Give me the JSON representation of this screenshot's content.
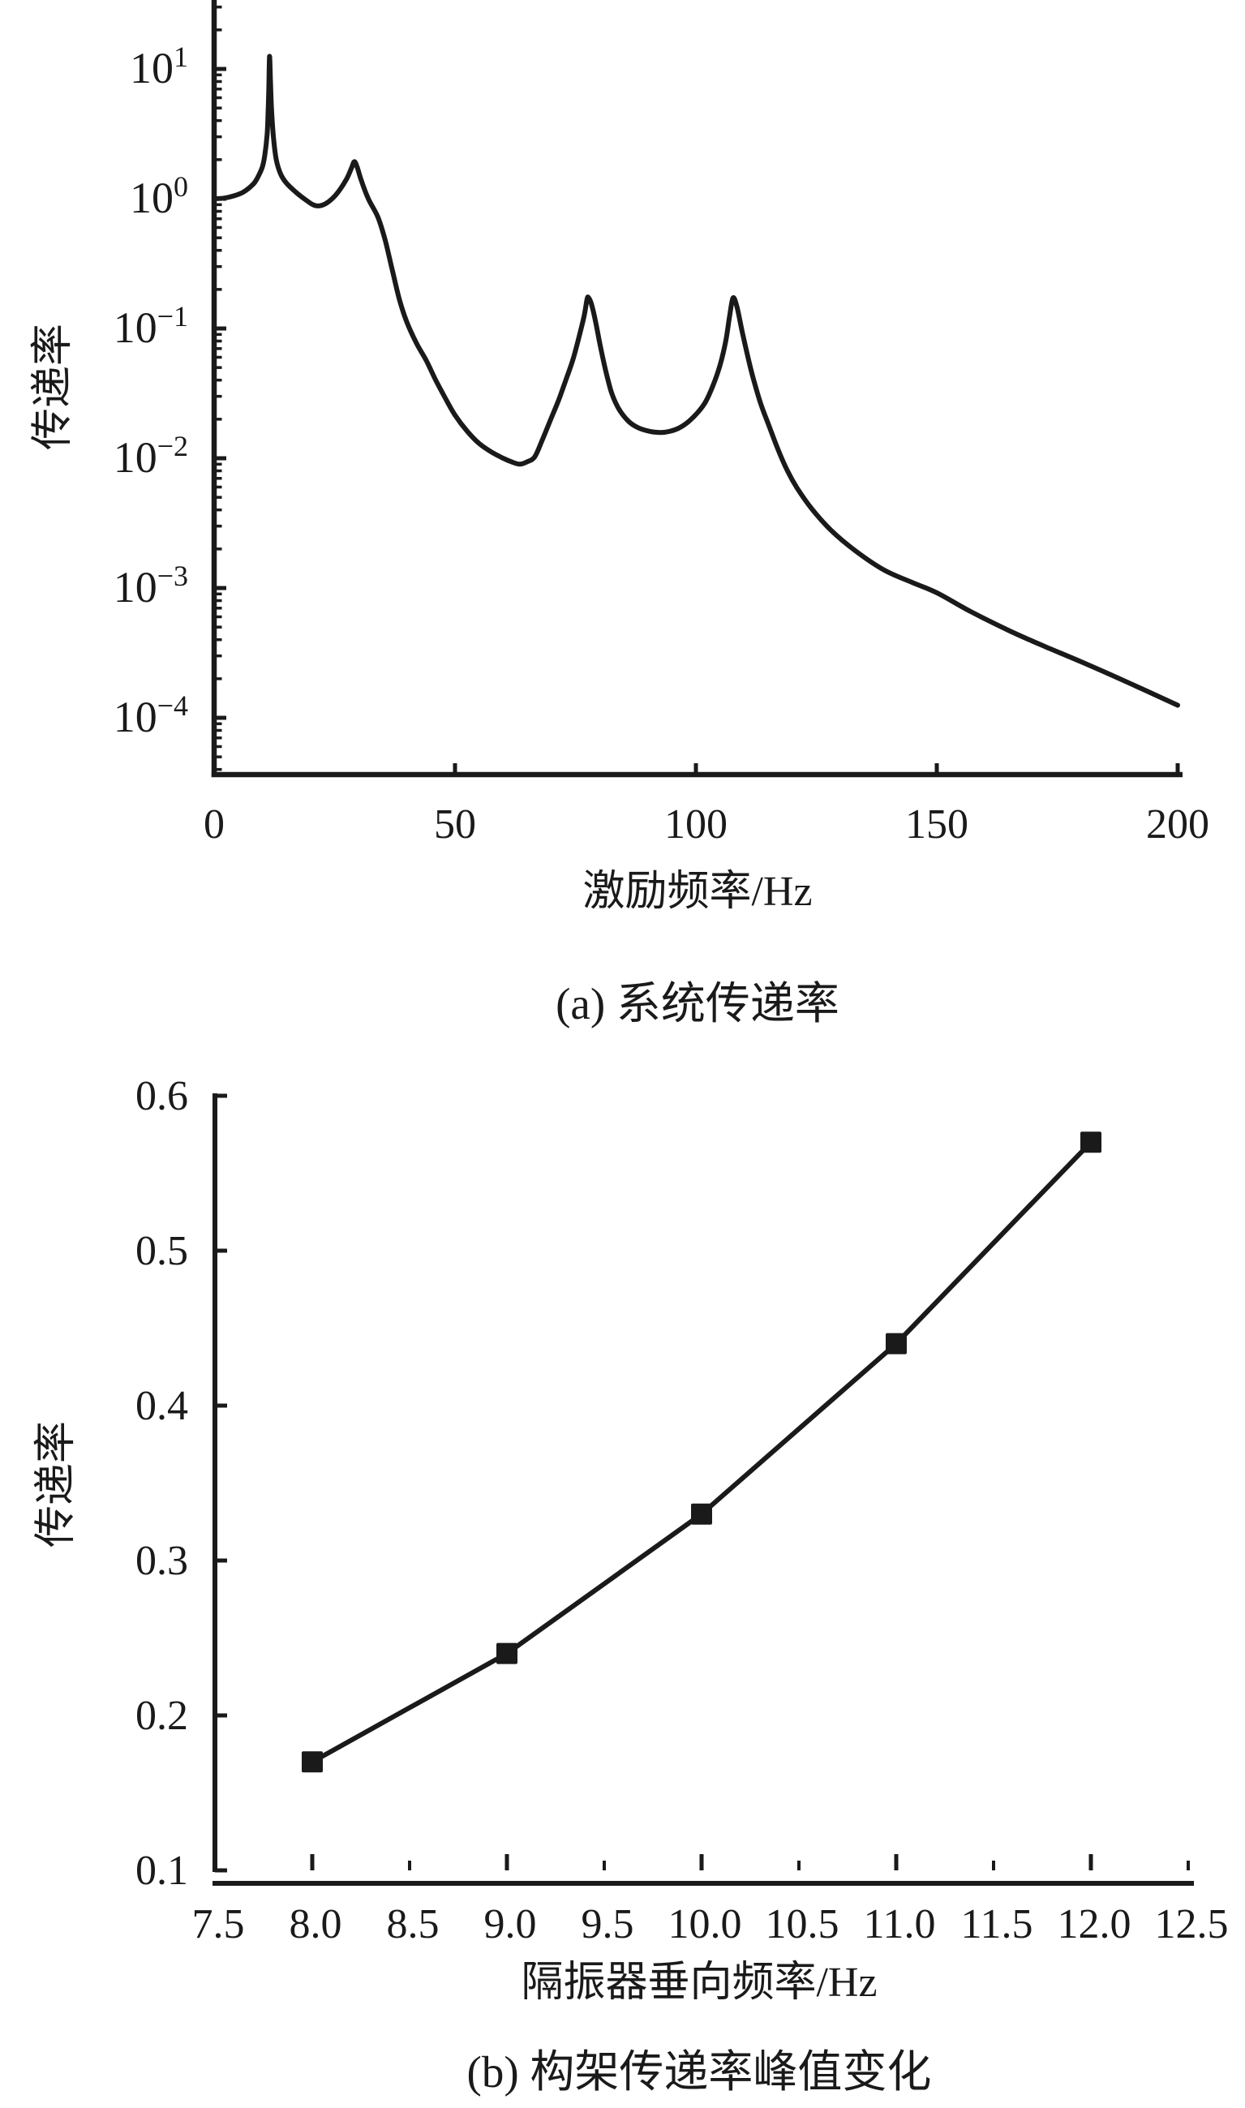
{
  "figure": {
    "background": "#ffffff",
    "ink": "#1a1a1a",
    "description": "Two stacked black-and-white line charts of vibration transmissibility"
  },
  "chart_data": [
    {
      "id": "a",
      "type": "line",
      "caption": "(a) 系统传递率",
      "xlabel": "激励频率/Hz",
      "ylabel": "传递率",
      "x_axis": {
        "min": 0,
        "max": 200,
        "ticks": [
          0,
          50,
          100,
          150,
          200
        ],
        "tick_labels": [
          "0",
          "50",
          "100",
          "150",
          "200"
        ]
      },
      "y_axis": {
        "scale": "log",
        "tick_exponents": [
          1,
          0,
          -1,
          -2,
          -3,
          -4
        ],
        "min": 3.85e-05,
        "max": 34,
        "minor_ticks": "log-decades"
      },
      "grid": false,
      "legend": false,
      "features": {
        "resonance_peaks_hz": [
          11.5,
          29.1,
          77.7,
          107.7
        ],
        "resonance_peak_values": [
          12.5,
          1.93,
          0.173,
          0.172
        ],
        "antiresonance_hz": [
          21.7,
          63.5,
          92.8
        ],
        "antiresonance_values": [
          0.88,
          0.009,
          0.0158
        ],
        "value_at_0hz": 1.0,
        "value_at_200hz": 0.000125
      },
      "series": {
        "name": "系统传递率",
        "points": [
          [
            0,
            1.0
          ],
          [
            2,
            1.01
          ],
          [
            4,
            1.05
          ],
          [
            6,
            1.12
          ],
          [
            8,
            1.28
          ],
          [
            9,
            1.45
          ],
          [
            10,
            1.75
          ],
          [
            10.5,
            2.15
          ],
          [
            11.0,
            3.1
          ],
          [
            11.2,
            4.6
          ],
          [
            11.35,
            7.0
          ],
          [
            11.5,
            12.5
          ],
          [
            11.7,
            8.0
          ],
          [
            11.9,
            5.0
          ],
          [
            12.3,
            3.0
          ],
          [
            12.9,
            2.0
          ],
          [
            13.8,
            1.55
          ],
          [
            15,
            1.32
          ],
          [
            17,
            1.12
          ],
          [
            19,
            0.98
          ],
          [
            20.5,
            0.9
          ],
          [
            21.7,
            0.88
          ],
          [
            23,
            0.91
          ],
          [
            24.5,
            1.0
          ],
          [
            26,
            1.16
          ],
          [
            27.5,
            1.42
          ],
          [
            28.5,
            1.72
          ],
          [
            29.1,
            1.93
          ],
          [
            29.7,
            1.75
          ],
          [
            30.5,
            1.4
          ],
          [
            32,
            1.0
          ],
          [
            34,
            0.72
          ],
          [
            35.5,
            0.48
          ],
          [
            37,
            0.28
          ],
          [
            38.5,
            0.165
          ],
          [
            40,
            0.112
          ],
          [
            42,
            0.077
          ],
          [
            44,
            0.057
          ],
          [
            46,
            0.04
          ],
          [
            48,
            0.029
          ],
          [
            50,
            0.0215
          ],
          [
            52.5,
            0.0162
          ],
          [
            55,
            0.013
          ],
          [
            57.5,
            0.0112
          ],
          [
            60,
            0.01
          ],
          [
            62,
            0.0093
          ],
          [
            63.5,
            0.009
          ],
          [
            65,
            0.0094
          ],
          [
            66.5,
            0.0102
          ],
          [
            68,
            0.0135
          ],
          [
            70,
            0.0205
          ],
          [
            71.5,
            0.028
          ],
          [
            73,
            0.04
          ],
          [
            74.5,
            0.058
          ],
          [
            75.8,
            0.088
          ],
          [
            76.8,
            0.125
          ],
          [
            77.4,
            0.168
          ],
          [
            77.7,
            0.173
          ],
          [
            78.3,
            0.155
          ],
          [
            79.2,
            0.112
          ],
          [
            80.2,
            0.072
          ],
          [
            81.3,
            0.047
          ],
          [
            82.5,
            0.032
          ],
          [
            84,
            0.024
          ],
          [
            86,
            0.0193
          ],
          [
            88,
            0.0172
          ],
          [
            90.5,
            0.0161
          ],
          [
            92.8,
            0.0158
          ],
          [
            94.5,
            0.0161
          ],
          [
            96.5,
            0.0171
          ],
          [
            98.5,
            0.0192
          ],
          [
            100.5,
            0.0228
          ],
          [
            102,
            0.0272
          ],
          [
            103.5,
            0.036
          ],
          [
            105,
            0.052
          ],
          [
            106.2,
            0.08
          ],
          [
            107.0,
            0.125
          ],
          [
            107.7,
            0.172
          ],
          [
            108.5,
            0.148
          ],
          [
            109.6,
            0.095
          ],
          [
            110.8,
            0.06
          ],
          [
            112,
            0.04
          ],
          [
            113.5,
            0.026
          ],
          [
            115,
            0.0185
          ],
          [
            117,
            0.0118
          ],
          [
            119,
            0.008
          ],
          [
            121,
            0.0059
          ],
          [
            124,
            0.0041
          ],
          [
            128,
            0.0028
          ],
          [
            133,
            0.00195
          ],
          [
            139,
            0.00138
          ],
          [
            145,
            0.0011
          ],
          [
            150,
            0.00092
          ],
          [
            157,
            0.00066
          ],
          [
            165,
            0.00047
          ],
          [
            172,
            0.00036
          ],
          [
            180,
            0.00027
          ],
          [
            190,
            0.000185
          ],
          [
            200,
            0.000125
          ]
        ]
      }
    },
    {
      "id": "b",
      "type": "line-scatter",
      "caption": "(b) 构架传递率峰值变化",
      "xlabel": "隔振器垂向频率/Hz",
      "ylabel": "传递率",
      "marker": "filled-square",
      "grid": false,
      "legend": false,
      "x": [
        8.0,
        9.0,
        10.0,
        11.0,
        12.0
      ],
      "y": [
        0.17,
        0.24,
        0.33,
        0.44,
        0.57
      ],
      "x_axis": {
        "min": 7.5,
        "max": 12.5,
        "tick_values": [
          7.5,
          8.0,
          8.5,
          9.0,
          9.5,
          10.0,
          10.5,
          11.0,
          11.5,
          12.0,
          12.5
        ],
        "tick_labels": [
          "7.5",
          "8.0",
          "8.5",
          "9.0",
          "9.5",
          "10.0",
          "10.5",
          "11.0",
          "11.5",
          "12.0",
          "12.5"
        ],
        "major_ticks": [
          8.0,
          9.0,
          10.0,
          11.0,
          12.0
        ]
      },
      "y_axis": {
        "min": 0.1,
        "max": 0.6,
        "tick_values": [
          0.6,
          0.5,
          0.4,
          0.3,
          0.2,
          0.1
        ],
        "tick_labels": [
          "0.6",
          "0.5",
          "0.4",
          "0.3",
          "0.2",
          "0.1"
        ]
      }
    }
  ]
}
